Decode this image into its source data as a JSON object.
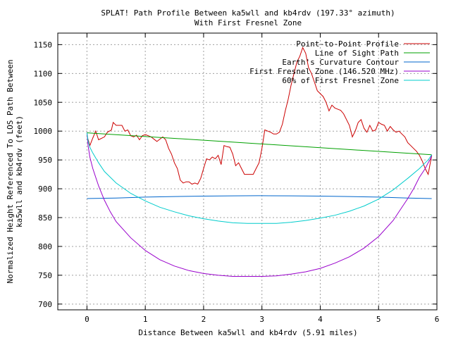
{
  "chart_data": {
    "type": "line",
    "title": "SPLAT! Path Profile Between ka5wll and kb4rdv (197.33° azimuth)",
    "subtitle": "With First Fresnel Zone",
    "xlabel": "Distance Between ka5wll and kb4rdv (5.91 miles)",
    "ylabel": "Normalized Height Referenced To LOS Path Between ka5wll and kb4rdv (feet)",
    "xlim": [
      -0.5,
      6
    ],
    "ylim": [
      690,
      1170
    ],
    "x_ticks": [
      0,
      1,
      2,
      3,
      4,
      5,
      6
    ],
    "y_ticks": [
      700,
      750,
      800,
      850,
      900,
      950,
      1000,
      1050,
      1100,
      1150
    ],
    "grid": true,
    "legend_position": "top-right",
    "series": [
      {
        "name": "Point-to-Point Profile",
        "color": "#cc0000",
        "points": [
          [
            0.0,
            992
          ],
          [
            0.05,
            975
          ],
          [
            0.1,
            988
          ],
          [
            0.15,
            1000
          ],
          [
            0.2,
            985
          ],
          [
            0.3,
            990
          ],
          [
            0.35,
            998
          ],
          [
            0.42,
            1002
          ],
          [
            0.45,
            1015
          ],
          [
            0.5,
            1010
          ],
          [
            0.6,
            1010
          ],
          [
            0.65,
            1000
          ],
          [
            0.7,
            1002
          ],
          [
            0.75,
            992
          ],
          [
            0.8,
            990
          ],
          [
            0.85,
            993
          ],
          [
            0.9,
            985
          ],
          [
            0.95,
            992
          ],
          [
            1.0,
            994
          ],
          [
            1.05,
            992
          ],
          [
            1.1,
            990
          ],
          [
            1.15,
            986
          ],
          [
            1.2,
            982
          ],
          [
            1.3,
            990
          ],
          [
            1.35,
            985
          ],
          [
            1.4,
            970
          ],
          [
            1.45,
            960
          ],
          [
            1.5,
            945
          ],
          [
            1.55,
            935
          ],
          [
            1.6,
            915
          ],
          [
            1.65,
            910
          ],
          [
            1.7,
            912
          ],
          [
            1.75,
            912
          ],
          [
            1.8,
            908
          ],
          [
            1.85,
            910
          ],
          [
            1.9,
            908
          ],
          [
            1.95,
            918
          ],
          [
            2.0,
            935
          ],
          [
            2.05,
            952
          ],
          [
            2.1,
            950
          ],
          [
            2.15,
            955
          ],
          [
            2.2,
            952
          ],
          [
            2.25,
            958
          ],
          [
            2.3,
            942
          ],
          [
            2.35,
            975
          ],
          [
            2.4,
            973
          ],
          [
            2.45,
            972
          ],
          [
            2.5,
            960
          ],
          [
            2.55,
            940
          ],
          [
            2.6,
            945
          ],
          [
            2.65,
            935
          ],
          [
            2.7,
            925
          ],
          [
            2.75,
            925
          ],
          [
            2.8,
            925
          ],
          [
            2.85,
            925
          ],
          [
            2.9,
            935
          ],
          [
            2.95,
            945
          ],
          [
            3.0,
            970
          ],
          [
            3.05,
            1002
          ],
          [
            3.1,
            1000
          ],
          [
            3.15,
            998
          ],
          [
            3.2,
            995
          ],
          [
            3.25,
            995
          ],
          [
            3.3,
            998
          ],
          [
            3.35,
            1012
          ],
          [
            3.4,
            1035
          ],
          [
            3.45,
            1055
          ],
          [
            3.5,
            1080
          ],
          [
            3.55,
            1100
          ],
          [
            3.6,
            1120
          ],
          [
            3.65,
            1130
          ],
          [
            3.7,
            1145
          ],
          [
            3.75,
            1135
          ],
          [
            3.8,
            1110
          ],
          [
            3.85,
            1100
          ],
          [
            3.9,
            1085
          ],
          [
            3.95,
            1070
          ],
          [
            4.0,
            1065
          ],
          [
            4.05,
            1060
          ],
          [
            4.1,
            1050
          ],
          [
            4.15,
            1035
          ],
          [
            4.2,
            1045
          ],
          [
            4.25,
            1040
          ],
          [
            4.3,
            1038
          ],
          [
            4.35,
            1036
          ],
          [
            4.4,
            1030
          ],
          [
            4.45,
            1020
          ],
          [
            4.5,
            1010
          ],
          [
            4.55,
            990
          ],
          [
            4.6,
            1000
          ],
          [
            4.65,
            1015
          ],
          [
            4.7,
            1020
          ],
          [
            4.75,
            1005
          ],
          [
            4.8,
            998
          ],
          [
            4.85,
            1010
          ],
          [
            4.9,
            1000
          ],
          [
            4.95,
            1002
          ],
          [
            5.0,
            1015
          ],
          [
            5.05,
            1012
          ],
          [
            5.1,
            1010
          ],
          [
            5.15,
            1000
          ],
          [
            5.2,
            1008
          ],
          [
            5.25,
            1002
          ],
          [
            5.3,
            998
          ],
          [
            5.35,
            1000
          ],
          [
            5.4,
            995
          ],
          [
            5.45,
            990
          ],
          [
            5.5,
            980
          ],
          [
            5.55,
            975
          ],
          [
            5.6,
            970
          ],
          [
            5.65,
            965
          ],
          [
            5.7,
            958
          ],
          [
            5.75,
            948
          ],
          [
            5.8,
            935
          ],
          [
            5.85,
            925
          ],
          [
            5.91,
            958
          ]
        ]
      },
      {
        "name": "Line of Sight Path",
        "color": "#00a000",
        "points": [
          [
            0.0,
            997
          ],
          [
            5.91,
            959
          ]
        ]
      },
      {
        "name": "Earth's Curvature Contour",
        "color": "#0066cc",
        "points": [
          [
            0.0,
            883
          ],
          [
            0.5,
            884
          ],
          [
            1.0,
            885.5
          ],
          [
            1.5,
            886.5
          ],
          [
            2.0,
            887.3
          ],
          [
            2.5,
            887.7
          ],
          [
            2.95,
            888
          ],
          [
            3.5,
            887.7
          ],
          [
            4.0,
            887.3
          ],
          [
            4.5,
            886.5
          ],
          [
            5.0,
            885.5
          ],
          [
            5.5,
            884
          ],
          [
            5.91,
            883
          ]
        ]
      },
      {
        "name": "First Fresnel Zone (146.520 MHz)",
        "color": "#9900cc",
        "points": [
          [
            0.0,
            997
          ],
          [
            0.02,
            975
          ],
          [
            0.05,
            955
          ],
          [
            0.1,
            935
          ],
          [
            0.2,
            905
          ],
          [
            0.3,
            880
          ],
          [
            0.4,
            860
          ],
          [
            0.5,
            843
          ],
          [
            0.75,
            815
          ],
          [
            1.0,
            793
          ],
          [
            1.25,
            777
          ],
          [
            1.5,
            766
          ],
          [
            1.75,
            758
          ],
          [
            2.0,
            753
          ],
          [
            2.25,
            750
          ],
          [
            2.5,
            748
          ],
          [
            2.75,
            748
          ],
          [
            3.0,
            748
          ],
          [
            3.25,
            749
          ],
          [
            3.5,
            752
          ],
          [
            3.75,
            756
          ],
          [
            4.0,
            762
          ],
          [
            4.25,
            771
          ],
          [
            4.5,
            782
          ],
          [
            4.75,
            797
          ],
          [
            5.0,
            817
          ],
          [
            5.25,
            845
          ],
          [
            5.5,
            883
          ],
          [
            5.6,
            900
          ],
          [
            5.7,
            920
          ],
          [
            5.8,
            935
          ],
          [
            5.85,
            945
          ],
          [
            5.89,
            952
          ],
          [
            5.91,
            959
          ]
        ]
      },
      {
        "name": "60% of First Fresnel Zone",
        "color": "#00cccc",
        "points": [
          [
            0.0,
            997
          ],
          [
            0.02,
            983
          ],
          [
            0.05,
            972
          ],
          [
            0.1,
            962
          ],
          [
            0.2,
            945
          ],
          [
            0.3,
            930
          ],
          [
            0.5,
            910
          ],
          [
            0.75,
            892
          ],
          [
            1.0,
            879
          ],
          [
            1.25,
            868
          ],
          [
            1.5,
            860
          ],
          [
            1.75,
            853
          ],
          [
            2.0,
            848
          ],
          [
            2.25,
            844
          ],
          [
            2.5,
            841
          ],
          [
            2.75,
            840
          ],
          [
            3.0,
            840
          ],
          [
            3.25,
            840
          ],
          [
            3.5,
            842
          ],
          [
            3.75,
            845
          ],
          [
            4.0,
            849
          ],
          [
            4.25,
            854
          ],
          [
            4.5,
            861
          ],
          [
            4.75,
            870
          ],
          [
            5.0,
            882
          ],
          [
            5.25,
            898
          ],
          [
            5.5,
            918
          ],
          [
            5.7,
            935
          ],
          [
            5.8,
            945
          ],
          [
            5.85,
            950
          ],
          [
            5.91,
            959
          ]
        ]
      }
    ]
  }
}
